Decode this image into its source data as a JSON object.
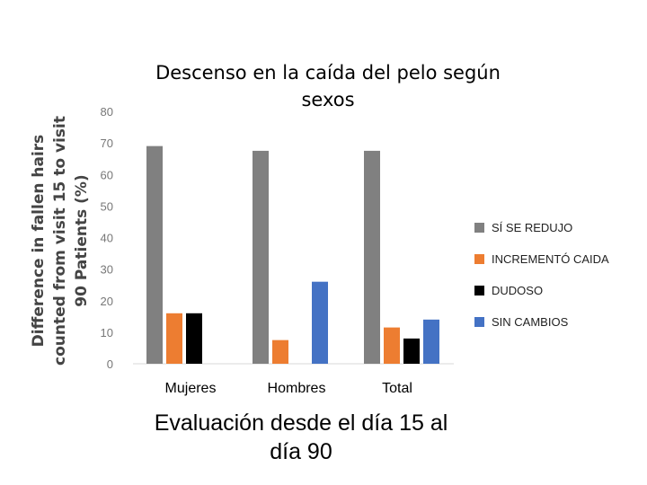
{
  "chart_data": {
    "type": "bar",
    "title": "Descenso en la caída del pelo según sexos",
    "ylabel": "Difference in fallen hairs counted from visit 15 to visit 90 Patients (%)",
    "xlabel": "Evaluación desde el día 15 al día 90",
    "categories": [
      "Mujeres",
      "Hombres",
      "Total"
    ],
    "ylim": [
      0,
      80
    ],
    "yticks": [
      "0",
      "10",
      "20",
      "30",
      "40",
      "50",
      "60",
      "70",
      "80"
    ],
    "grid": false,
    "legend_position": "right",
    "series": [
      {
        "name": "SÍ SE REDUJO",
        "color": "#808080",
        "values": [
          69,
          67.5,
          67.5
        ]
      },
      {
        "name": "INCREMENTÓ CAIDA",
        "color": "#ED7D31",
        "values": [
          16,
          7.5,
          11.5
        ]
      },
      {
        "name": "DUDOSO",
        "color": "#000000",
        "values": [
          16,
          0,
          8
        ]
      },
      {
        "name": "SIN CAMBIOS",
        "color": "#4472C4",
        "values": [
          0,
          26,
          14
        ]
      }
    ]
  }
}
